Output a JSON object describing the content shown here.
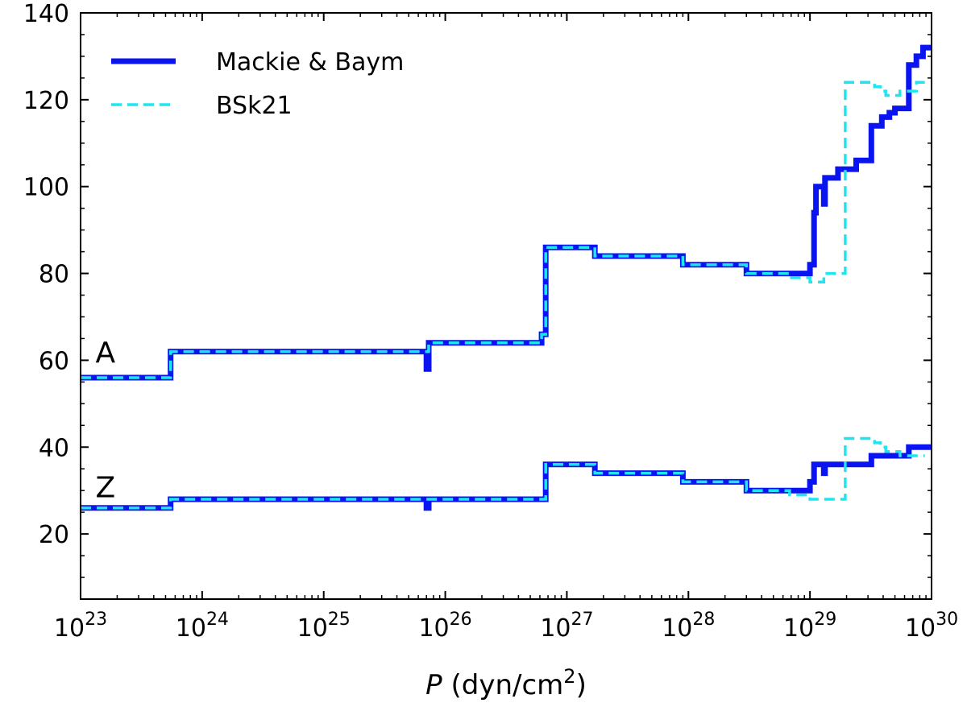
{
  "chart_data": {
    "type": "line",
    "xscale": "log",
    "xlim": [
      1e+23,
      1e+30
    ],
    "ylim": [
      5,
      140
    ],
    "xlabel": {
      "italic": "P",
      "rest": " (dyn/cm",
      "sup": "2",
      "close": ")"
    },
    "ylabel": "",
    "grid": false,
    "legend": "top-left",
    "x_ticks": [
      {
        "base": "10",
        "exp": "23",
        "value": 1e+23
      },
      {
        "base": "10",
        "exp": "24",
        "value": 1e+24
      },
      {
        "base": "10",
        "exp": "25",
        "value": 1e+25
      },
      {
        "base": "10",
        "exp": "26",
        "value": 1e+26
      },
      {
        "base": "10",
        "exp": "27",
        "value": 1e+27
      },
      {
        "base": "10",
        "exp": "28",
        "value": 1e+28
      },
      {
        "base": "10",
        "exp": "29",
        "value": 1e+29
      },
      {
        "base": "10",
        "exp": "30",
        "value": 1e+30
      }
    ],
    "y_ticks": [
      {
        "label": "20",
        "value": 20
      },
      {
        "label": "40",
        "value": 40
      },
      {
        "label": "60",
        "value": 60
      },
      {
        "label": "80",
        "value": 80
      },
      {
        "label": "100",
        "value": 100
      },
      {
        "label": "120",
        "value": 120
      },
      {
        "label": "140",
        "value": 140
      }
    ],
    "curve_labels": [
      {
        "text": "A",
        "x": 1.6e+23,
        "y": 59.5
      },
      {
        "text": "Z",
        "x": 1.6e+23,
        "y": 28.5
      }
    ],
    "series": [
      {
        "name": "Mackie & Baym",
        "color": "#0a14f0",
        "style": "solid",
        "groups": [
          {
            "quantity": "A",
            "steps": [
              [
                1e+23,
                56
              ],
              [
                5.5e+23,
                62
              ],
              [
                7e+25,
                58
              ],
              [
                7.3e+25,
                64
              ],
              [
                6.2e+26,
                66
              ],
              [
                6.7e+26,
                86
              ],
              [
                1.7e+27,
                84
              ],
              [
                9e+27,
                82
              ],
              [
                3e+28,
                80
              ],
              [
                1e+29,
                82
              ],
              [
                1.08e+29,
                94
              ],
              [
                1.12e+29,
                100
              ],
              [
                1.2e+29,
                100
              ],
              [
                1.3e+29,
                96
              ],
              [
                1.33e+29,
                102
              ],
              [
                1.7e+29,
                104
              ],
              [
                2.4e+29,
                106
              ],
              [
                3.2e+29,
                114
              ],
              [
                3.9e+29,
                116
              ],
              [
                4.5e+29,
                117
              ],
              [
                5e+29,
                118
              ],
              [
                6.5e+29,
                128
              ],
              [
                7.5e+29,
                130
              ],
              [
                8.5e+29,
                132
              ],
              [
                1e+30,
                132
              ]
            ]
          },
          {
            "quantity": "Z",
            "steps": [
              [
                1e+23,
                26
              ],
              [
                5.5e+23,
                28
              ],
              [
                7e+25,
                26
              ],
              [
                7.3e+25,
                28
              ],
              [
                6.7e+26,
                36
              ],
              [
                1.7e+27,
                34
              ],
              [
                9e+27,
                32
              ],
              [
                3e+28,
                30
              ],
              [
                1e+29,
                32
              ],
              [
                1.08e+29,
                36
              ],
              [
                1.3e+29,
                34
              ],
              [
                1.33e+29,
                36
              ],
              [
                3.2e+29,
                38
              ],
              [
                6.5e+29,
                40
              ],
              [
                1e+30,
                40
              ]
            ]
          }
        ]
      },
      {
        "name": "BSk21",
        "color": "#1ee6f0",
        "style": "dashed",
        "groups": [
          {
            "quantity": "A",
            "steps": [
              [
                1e+23,
                56
              ],
              [
                5.5e+23,
                62
              ],
              [
                7.3e+25,
                64
              ],
              [
                6.2e+26,
                66
              ],
              [
                6.7e+26,
                86
              ],
              [
                1.7e+27,
                84
              ],
              [
                9e+27,
                82
              ],
              [
                3e+28,
                80
              ],
              [
                6.8e+28,
                79
              ],
              [
                1e+29,
                78
              ],
              [
                1.3e+29,
                80
              ],
              [
                1.95e+29,
                124
              ],
              [
                3.4e+29,
                123
              ],
              [
                3.8e+29,
                122
              ],
              [
                4.2e+29,
                121
              ],
              [
                5.5e+29,
                122
              ],
              [
                7.5e+29,
                124
              ],
              [
                8.8e+29,
                124
              ]
            ]
          },
          {
            "quantity": "Z",
            "steps": [
              [
                1e+23,
                26
              ],
              [
                5.5e+23,
                28
              ],
              [
                6.7e+26,
                36
              ],
              [
                1.7e+27,
                34
              ],
              [
                9e+27,
                32
              ],
              [
                3e+28,
                30
              ],
              [
                6.8e+28,
                29
              ],
              [
                1e+29,
                28
              ],
              [
                1.95e+29,
                42
              ],
              [
                3.4e+29,
                41
              ],
              [
                3.8e+29,
                40
              ],
              [
                4.2e+29,
                39
              ],
              [
                5.5e+29,
                38
              ],
              [
                8.8e+29,
                38
              ]
            ]
          }
        ]
      }
    ]
  }
}
